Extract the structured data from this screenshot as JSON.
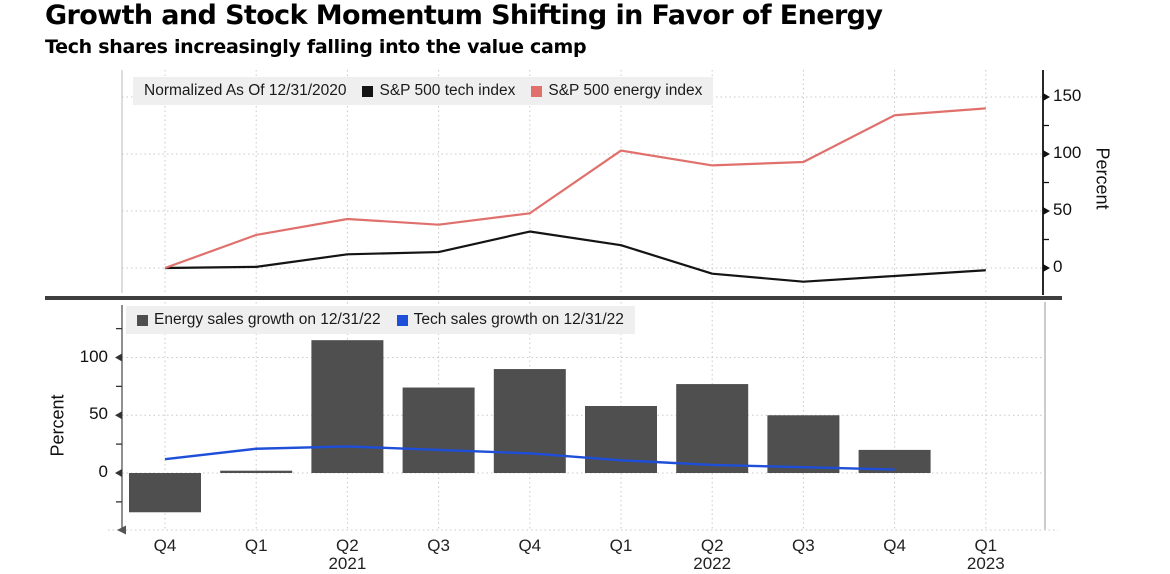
{
  "header": {
    "title": "Growth and Stock Momentum Shifting in Favor of Energy",
    "subtitle": "Tech shares increasingly falling into the value camp"
  },
  "x_axis": {
    "categories": [
      "Q4",
      "Q1",
      "Q2",
      "Q3",
      "Q4",
      "Q1",
      "Q2",
      "Q3",
      "Q4",
      "Q1"
    ],
    "year_labels": [
      {
        "index": 2,
        "label": "2021"
      },
      {
        "index": 6,
        "label": "2022"
      },
      {
        "index": 9,
        "label": "2023"
      }
    ]
  },
  "chart_data": [
    {
      "type": "line",
      "panel": "top",
      "note": "Normalized As Of 12/31/2020",
      "ylabel": "Percent",
      "yticks": [
        0,
        50,
        100,
        150
      ],
      "ylim": [
        -22,
        174
      ],
      "grid": true,
      "legend_position": "top-left",
      "series": [
        {
          "name": "S&P 500 tech index",
          "color": "#141414",
          "values": [
            0,
            1,
            12,
            14,
            32,
            20,
            -5,
            -12,
            -7,
            -2
          ]
        },
        {
          "name": "S&P 500 energy index",
          "color": "#e0706c",
          "values": [
            0,
            29,
            43,
            38,
            48,
            103,
            90,
            93,
            134,
            140
          ]
        }
      ]
    },
    {
      "type": "bar+line",
      "panel": "bottom",
      "ylabel": "Percent",
      "yticks": [
        0,
        50,
        100
      ],
      "ylim": [
        -49,
        148
      ],
      "grid": true,
      "legend_position": "top-left",
      "series": [
        {
          "type": "bar",
          "name": "Energy sales growth on 12/31/22",
          "color": "#4f4f4f",
          "values": [
            -34,
            2,
            115,
            74,
            90,
            58,
            77,
            50,
            20,
            null
          ]
        },
        {
          "type": "line",
          "name": "Tech sales growth on 12/31/22",
          "color": "#1f4fd8",
          "values": [
            12,
            21,
            23,
            20,
            17,
            11,
            7,
            5,
            3,
            null
          ]
        }
      ]
    }
  ],
  "colors": {
    "grid": "#c9c9c9",
    "divider": "#3e3e3e",
    "legend_bg": "#efefef",
    "axis": "#111111"
  }
}
